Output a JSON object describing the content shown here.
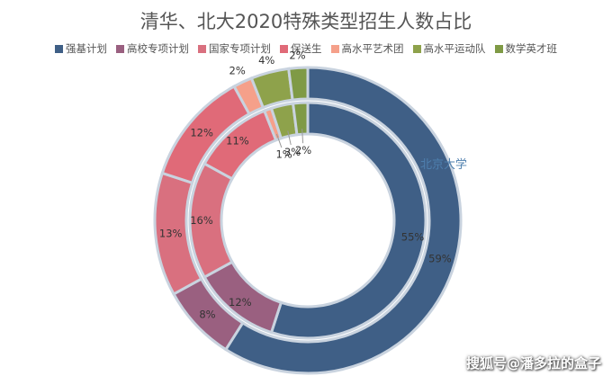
{
  "chart_data": {
    "type": "doughnut",
    "title": "清华、北大2020特殊类型招生人数占比",
    "categories": [
      "强基计划",
      "高校专项计划",
      "国家专项计划",
      "保送生",
      "高水平艺术团",
      "高水平运动队",
      "数学英才班"
    ],
    "colors": [
      "#3f5f86",
      "#9a6080",
      "#d9707f",
      "#e06a78",
      "#f5a08a",
      "#8ea24b",
      "#7f9a45"
    ],
    "series": [
      {
        "name": "北京大学",
        "values": [
          55,
          12,
          16,
          11,
          1,
          3,
          2
        ],
        "labels": [
          "55%",
          "12%",
          "16%",
          "11%",
          "1%",
          "3%",
          "2%"
        ]
      },
      {
        "values": [
          59,
          8,
          13,
          12,
          2,
          4,
          2
        ],
        "labels": [
          "59%",
          "8%",
          "13%",
          "12%",
          "2%",
          "4%",
          "2%"
        ]
      }
    ],
    "legend_position": "top"
  },
  "watermark": "搜狐号@潘多拉的盒子"
}
